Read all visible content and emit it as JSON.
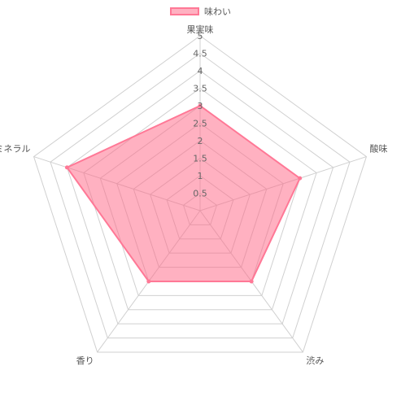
{
  "chart_data": {
    "type": "radar",
    "categories": [
      "果実味",
      "酸味",
      "渋み",
      "香り",
      "ミネラル"
    ],
    "series": [
      {
        "name": "味わい",
        "values": [
          3,
          3,
          2.5,
          2.5,
          4
        ]
      }
    ],
    "rlim": [
      0,
      5
    ],
    "ticks": [
      "0.5",
      "1",
      "1.5",
      "2",
      "2.5",
      "3",
      "3.5",
      "4",
      "4.5",
      "5"
    ],
    "grid": true,
    "legend": "top-center",
    "colors": {
      "fill": "#ff6384",
      "stroke": "#ff7896",
      "grid": "#d0d0d0"
    }
  }
}
